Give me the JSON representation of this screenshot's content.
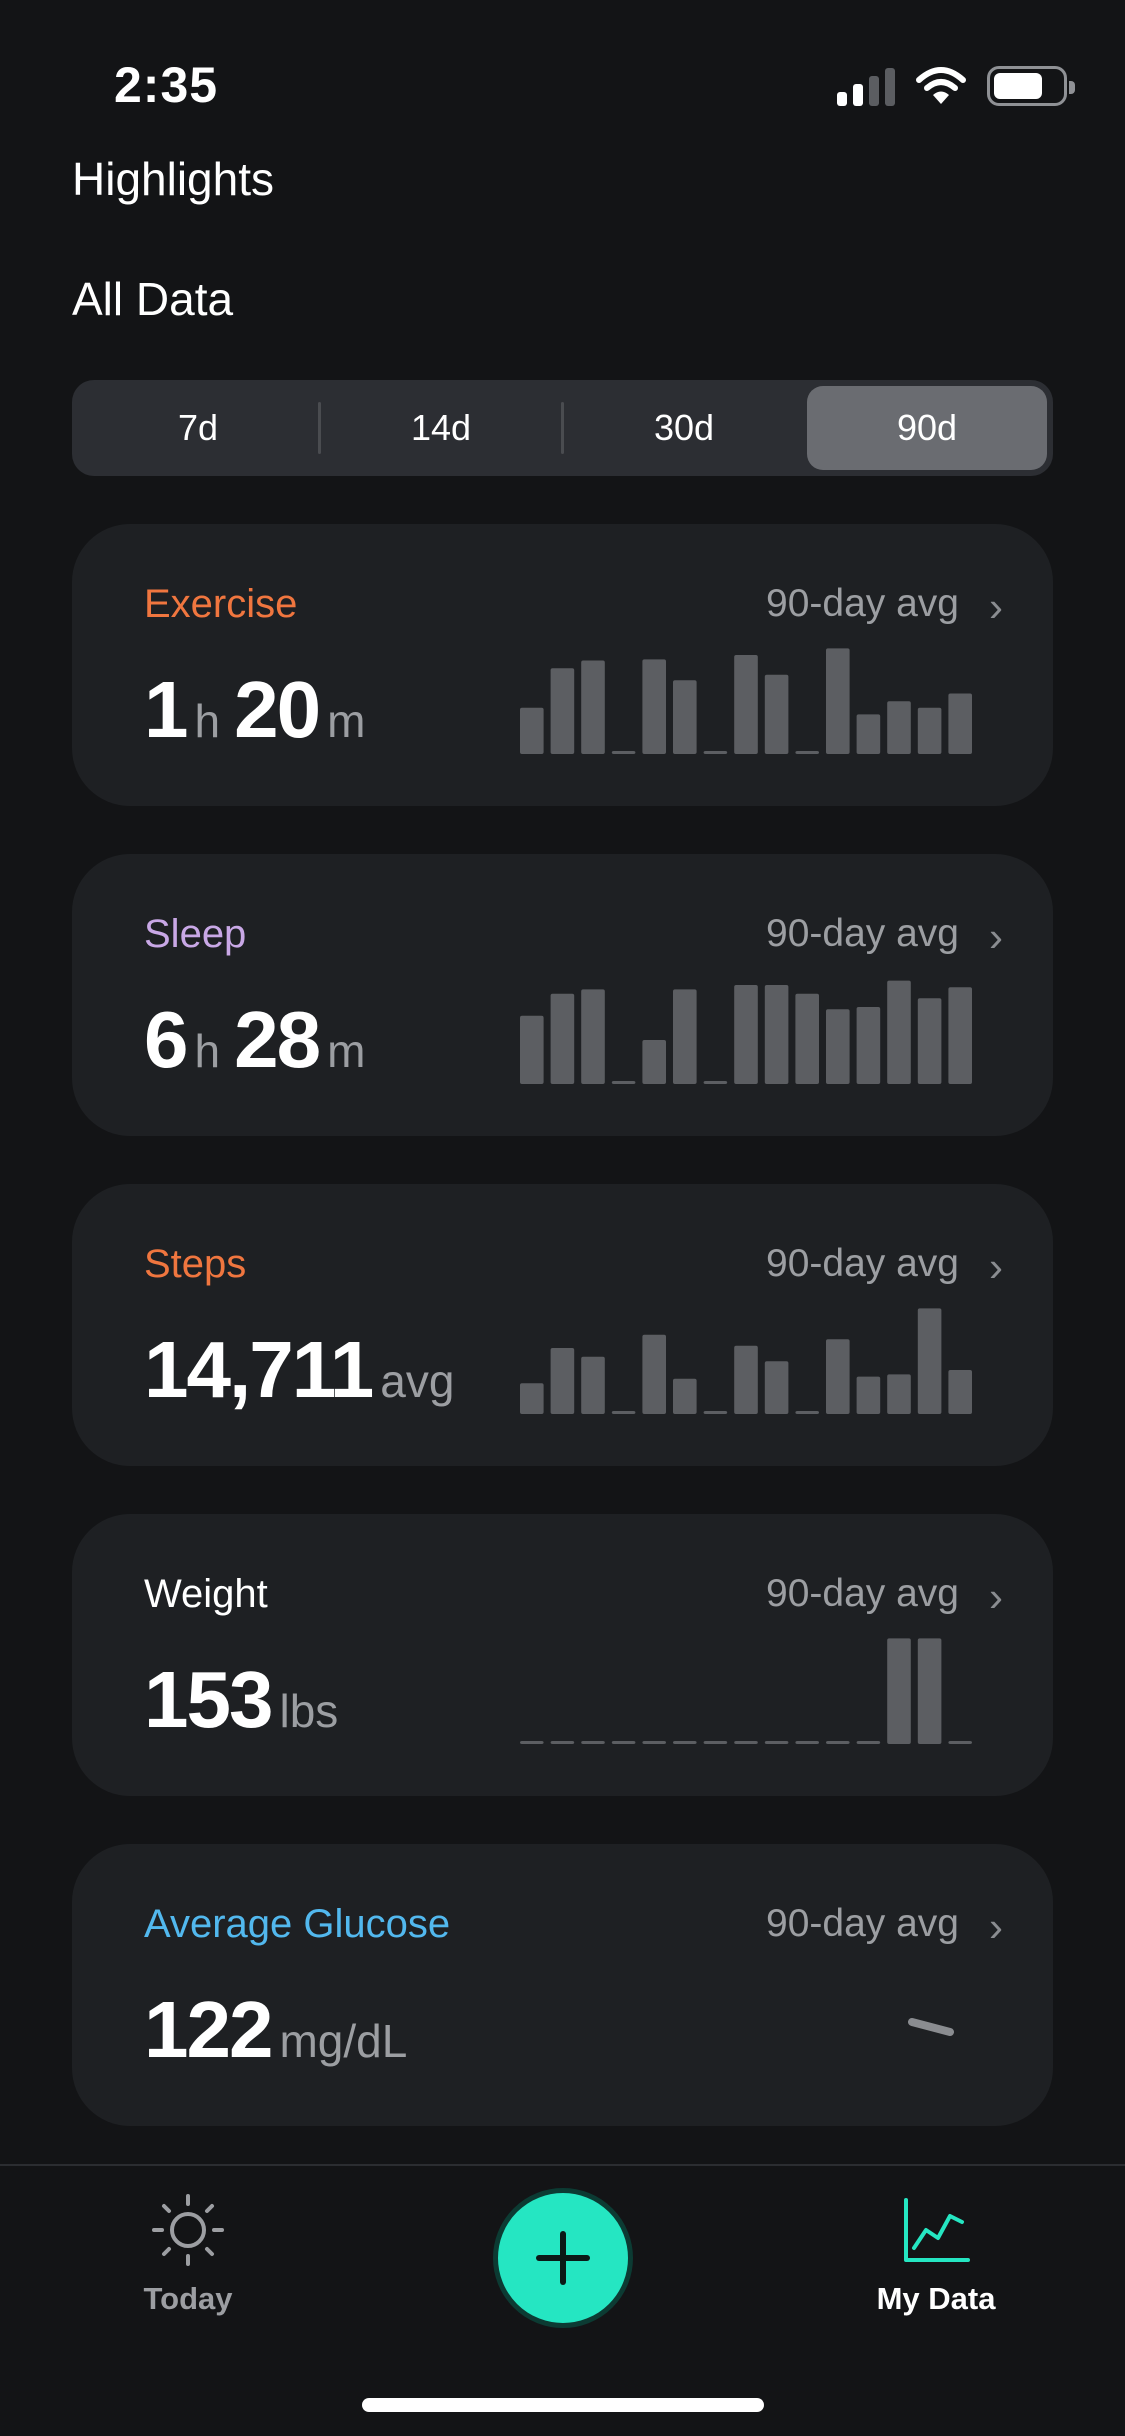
{
  "status_bar": {
    "time": "2:35"
  },
  "highlights_title": "Highlights",
  "section_title": "All Data",
  "range_tabs": [
    {
      "label": "7d",
      "selected": false
    },
    {
      "label": "14d",
      "selected": false
    },
    {
      "label": "30d",
      "selected": false
    },
    {
      "label": "90d",
      "selected": true
    }
  ],
  "cards": [
    {
      "title": "Exercise",
      "title_color": "#f0763f",
      "avg_label": "90-day avg",
      "value_parts": [
        {
          "text": "1",
          "kind": "big"
        },
        {
          "text": "h",
          "kind": "unit"
        },
        {
          "text": "20",
          "kind": "big"
        },
        {
          "text": "m",
          "kind": "unit"
        }
      ],
      "bar_values": [
        0.42,
        0.78,
        0.85,
        0.02,
        0.86,
        0.67,
        0.02,
        0.9,
        0.72,
        0.02,
        0.96,
        0.36,
        0.48,
        0.42,
        0.55
      ]
    },
    {
      "title": "Sleep",
      "title_color": "#c9a8e6",
      "avg_label": "90-day avg",
      "value_parts": [
        {
          "text": "6",
          "kind": "big"
        },
        {
          "text": "h",
          "kind": "unit"
        },
        {
          "text": "28",
          "kind": "big"
        },
        {
          "text": "m",
          "kind": "unit"
        }
      ],
      "bar_values": [
        0.62,
        0.82,
        0.86,
        0.02,
        0.4,
        0.86,
        0.02,
        0.9,
        0.9,
        0.82,
        0.68,
        0.7,
        0.94,
        0.78,
        0.88
      ]
    },
    {
      "title": "Steps",
      "title_color": "#f0763f",
      "avg_label": "90-day avg",
      "value_parts": [
        {
          "text": "14,711",
          "kind": "big"
        },
        {
          "text": "avg",
          "kind": "unit"
        }
      ],
      "bar_values": [
        0.28,
        0.6,
        0.52,
        0.02,
        0.72,
        0.32,
        0.02,
        0.62,
        0.48,
        0.02,
        0.68,
        0.34,
        0.36,
        0.96,
        0.4
      ]
    },
    {
      "title": "Weight",
      "title_color": "#ffffff",
      "avg_label": "90-day avg",
      "value_parts": [
        {
          "text": "153",
          "kind": "big"
        },
        {
          "text": "lbs",
          "kind": "unit"
        }
      ],
      "bar_values": [
        0.02,
        0.02,
        0.02,
        0.02,
        0.02,
        0.02,
        0.02,
        0.02,
        0.02,
        0.02,
        0.02,
        0.02,
        0.96,
        0.96,
        0.02
      ]
    },
    {
      "title": "Average Glucose",
      "title_color": "#52b8ee",
      "avg_label": "90-day avg",
      "value_parts": [
        {
          "text": "122",
          "kind": "big"
        },
        {
          "text": "mg/dL",
          "kind": "unit"
        }
      ],
      "bar_values": []
    }
  ],
  "bottom_nav": {
    "today_label": "Today",
    "mydata_label": "My Data",
    "active_tab": "My Data",
    "fab_icon": "plus-icon",
    "accent_color": "#25e6c2"
  }
}
